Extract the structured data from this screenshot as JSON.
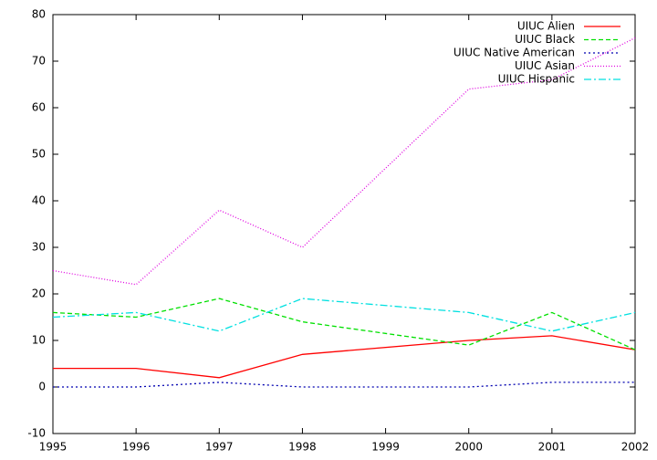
{
  "chart_data": {
    "type": "line",
    "x": [
      1995,
      1996,
      1997,
      1998,
      2000,
      2001,
      2002
    ],
    "xlim": [
      1995,
      2002
    ],
    "xticks": [
      1995,
      1996,
      1997,
      1998,
      1999,
      2000,
      2001,
      2002
    ],
    "ylim": [
      -10,
      80
    ],
    "yticks": [
      -10,
      0,
      10,
      20,
      30,
      40,
      50,
      60,
      70,
      80
    ],
    "legend": "top-right",
    "series": [
      {
        "name": "UIUC Alien",
        "color": "#ff0000",
        "values": [
          4,
          4,
          2,
          7,
          10,
          11,
          8
        ]
      },
      {
        "name": "UIUC Black",
        "color": "#00e000",
        "values": [
          16,
          15,
          19,
          14,
          9,
          16,
          8
        ]
      },
      {
        "name": "UIUC Native American",
        "color": "#0000b0",
        "values": [
          0,
          0,
          1,
          0,
          0,
          1,
          1
        ]
      },
      {
        "name": "UIUC Asian",
        "color": "#e000e0",
        "values": [
          25,
          22,
          38,
          30,
          64,
          66,
          75
        ]
      },
      {
        "name": "UIUC Hispanic",
        "color": "#00e0e0",
        "values": [
          15,
          16,
          12,
          19,
          16,
          12,
          16
        ]
      }
    ]
  }
}
